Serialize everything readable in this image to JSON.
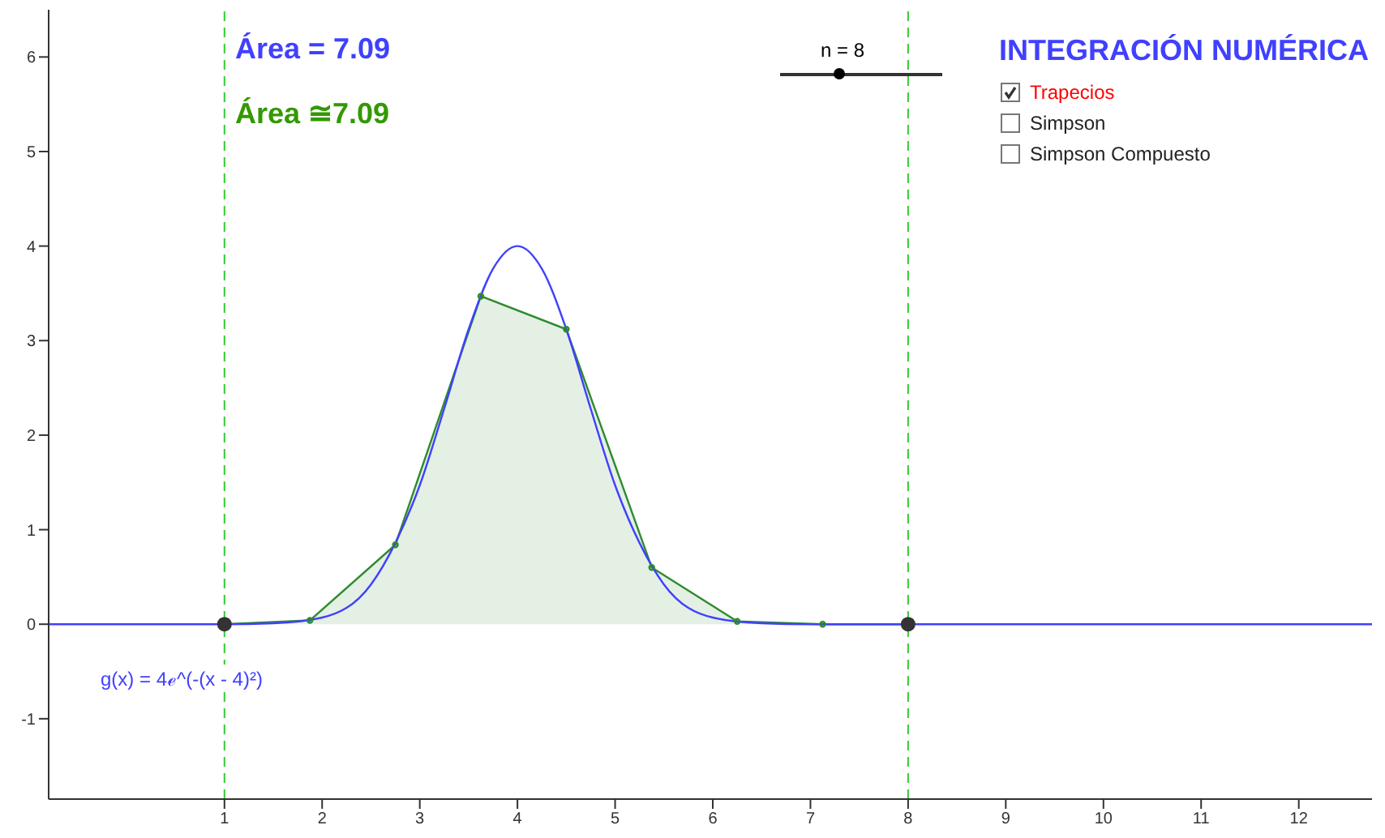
{
  "chart_data": {
    "type": "line",
    "title": "INTEGRACIÓN NUMÉRICA",
    "xlim": [
      -0.8,
      12.75
    ],
    "ylim": [
      -1.85,
      6.5
    ],
    "xticks": [
      1,
      2,
      3,
      4,
      5,
      6,
      7,
      8,
      9,
      10,
      11,
      12
    ],
    "yticks": [
      -1,
      0,
      1,
      2,
      3,
      4,
      5,
      6
    ],
    "grid": false,
    "legend": false,
    "series": [
      {
        "type": "area",
        "color": "#2e8b2e",
        "x": [
          1,
          1.875,
          2.75,
          3.625,
          4.5,
          5.375,
          6.25,
          7.125,
          8
        ],
        "values": [
          0,
          0.04,
          0.84,
          3.47,
          3.12,
          0.6,
          0.03,
          0,
          0
        ]
      },
      {
        "color": "#4040ff",
        "x": [
          -0.8,
          0,
          1,
          1.5,
          2,
          2.5,
          2.75,
          3,
          3.25,
          3.5,
          3.75,
          4,
          4.25,
          4.5,
          4.75,
          5,
          5.25,
          5.5,
          6,
          6.5,
          7,
          8,
          12.75
        ],
        "values": [
          0,
          0,
          0,
          0.01,
          0.07,
          0.42,
          0.86,
          1.47,
          2.28,
          3.12,
          3.76,
          4,
          3.76,
          3.12,
          2.28,
          1.47,
          0.86,
          0.42,
          0.07,
          0.01,
          0,
          0,
          0
        ]
      },
      {
        "type": "scatter",
        "color": "#333333",
        "x": [
          1,
          8
        ],
        "values": [
          0,
          0
        ]
      }
    ],
    "ref_lines": [
      {
        "axis": "x",
        "value": 1,
        "color": "#33cc33",
        "line_style": "dashed"
      },
      {
        "axis": "x",
        "value": 8,
        "color": "#33cc33",
        "line_style": "dashed"
      }
    ],
    "annotations": [
      "Área = 7.09",
      "Área ≅7.09",
      "g(x) = 4ℯ^(-(x - 4)²)",
      "n = 8",
      "Trapecios",
      "Simpson",
      "Simpson Compuesto"
    ]
  }
}
